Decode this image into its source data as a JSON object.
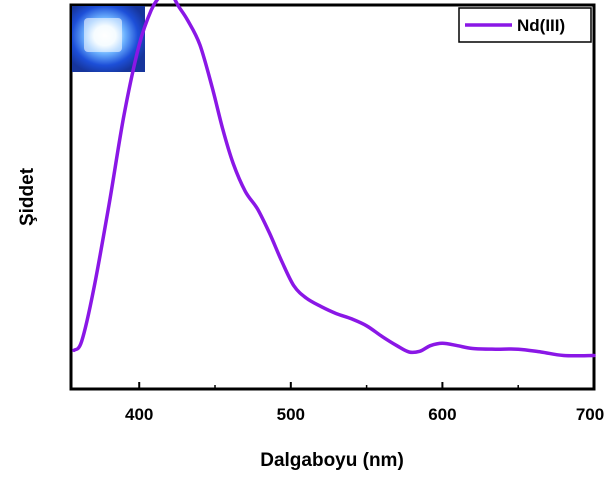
{
  "chart_data": {
    "type": "line",
    "xlabel": "Dalgaboyu (nm)",
    "ylabel": "Şiddet",
    "xlim": [
      355,
      700
    ],
    "ylim": [
      0,
      1.1
    ],
    "x_ticks": [
      400,
      500,
      600,
      700
    ],
    "y_ticks_shown": false,
    "grid": false,
    "legend_position": "top-right",
    "inset_image": "blue glowing sample photo (top-left)",
    "series": [
      {
        "name": "Nd(III)",
        "color": "#8A17E6",
        "x": [
          357,
          362,
          370,
          380,
          390,
          400,
          408,
          414,
          418,
          422,
          426,
          432,
          440,
          448,
          455,
          462,
          470,
          478,
          486,
          494,
          502,
          510,
          520,
          530,
          540,
          550,
          560,
          570,
          578,
          585,
          592,
          600,
          610,
          620,
          635,
          650,
          665,
          680,
          700
        ],
        "y": [
          0.005,
          0.03,
          0.18,
          0.42,
          0.68,
          0.88,
          0.98,
          1.02,
          1.03,
          1.02,
          0.99,
          0.95,
          0.88,
          0.76,
          0.64,
          0.54,
          0.46,
          0.41,
          0.34,
          0.26,
          0.19,
          0.155,
          0.13,
          0.11,
          0.095,
          0.075,
          0.045,
          0.018,
          0.0,
          0.002,
          0.018,
          0.025,
          0.018,
          0.01,
          0.008,
          0.008,
          0.0,
          -0.01,
          -0.01
        ]
      }
    ]
  }
}
